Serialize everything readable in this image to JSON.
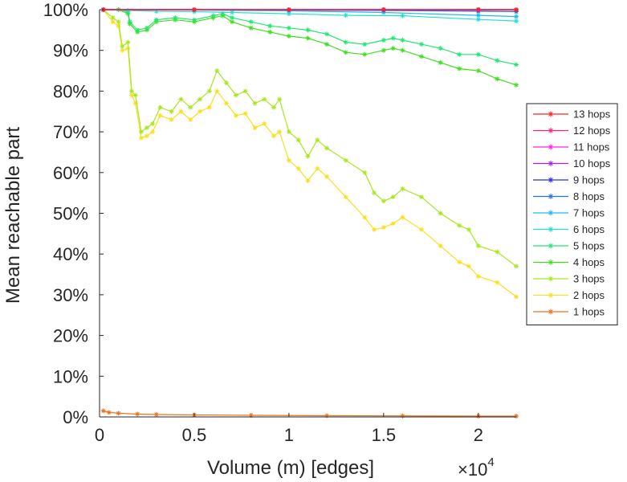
{
  "chart_data": {
    "type": "line",
    "xlabel": "Volume (m) [edges]",
    "ylabel": "Mean reachable part",
    "x_exponent_label": "×10",
    "x_exponent_power": "4",
    "xlim": [
      0,
      22000
    ],
    "ylim": [
      0,
      100
    ],
    "x_ticks": [
      {
        "value": 0,
        "label": "0"
      },
      {
        "value": 5000,
        "label": "0.5"
      },
      {
        "value": 10000,
        "label": "1"
      },
      {
        "value": 15000,
        "label": "1.5"
      },
      {
        "value": 20000,
        "label": "2"
      }
    ],
    "y_ticks": [
      {
        "value": 0,
        "label": "0%"
      },
      {
        "value": 10,
        "label": "10%"
      },
      {
        "value": 20,
        "label": "20%"
      },
      {
        "value": 30,
        "label": "30%"
      },
      {
        "value": 40,
        "label": "40%"
      },
      {
        "value": 50,
        "label": "50%"
      },
      {
        "value": 60,
        "label": "60%"
      },
      {
        "value": 70,
        "label": "70%"
      },
      {
        "value": 80,
        "label": "80%"
      },
      {
        "value": 90,
        "label": "90%"
      },
      {
        "value": 100,
        "label": "100%"
      }
    ],
    "grid": false,
    "legend_position": "right",
    "series": [
      {
        "name": "13 hops",
        "color": "#ff2020",
        "x": [
          200,
          5000,
          10000,
          15000,
          20000,
          22000
        ],
        "values": [
          100,
          100,
          100,
          100,
          100,
          100
        ]
      },
      {
        "name": "12 hops",
        "color": "#ff2080",
        "x": [
          200,
          5000,
          10000,
          15000,
          20000,
          22000
        ],
        "values": [
          100,
          100,
          100,
          100,
          100,
          100
        ]
      },
      {
        "name": "11 hops",
        "color": "#ff20e0",
        "x": [
          200,
          5000,
          10000,
          15000,
          20000,
          22000
        ],
        "values": [
          100,
          100,
          100,
          100,
          100,
          100
        ]
      },
      {
        "name": "10 hops",
        "color": "#a020ff",
        "x": [
          200,
          5000,
          10000,
          15000,
          20000,
          22000
        ],
        "values": [
          100,
          100,
          100,
          100,
          100,
          100
        ]
      },
      {
        "name": "9 hops",
        "color": "#2a2ad8",
        "x": [
          200,
          5000,
          10000,
          15000,
          20000,
          22000
        ],
        "values": [
          100,
          100,
          100,
          100,
          99.9,
          99.9
        ]
      },
      {
        "name": "8 hops",
        "color": "#2a6ee8",
        "x": [
          200,
          5000,
          10000,
          15000,
          20000,
          22000
        ],
        "values": [
          100,
          100,
          99.9,
          99.8,
          99.6,
          99.5
        ]
      },
      {
        "name": "7 hops",
        "color": "#20b8f0",
        "x": [
          200,
          5000,
          10000,
          15000,
          20000,
          22000
        ],
        "values": [
          100,
          99.9,
          99.7,
          99.3,
          98.6,
          98.3
        ]
      },
      {
        "name": "6 hops",
        "color": "#20e0d0",
        "x": [
          200,
          1500,
          3000,
          5000,
          7000,
          10000,
          13000,
          16000,
          20000,
          22000
        ],
        "values": [
          100,
          99.8,
          99.6,
          99.5,
          99.3,
          99.0,
          98.6,
          98.5,
          97.6,
          97.2
        ]
      },
      {
        "name": "5 hops",
        "color": "#20e870",
        "x": [
          200,
          1000,
          1500,
          1600,
          2000,
          2500,
          3000,
          4000,
          5000,
          6000,
          6500,
          7000,
          8000,
          9000,
          10000,
          11000,
          12000,
          13000,
          14000,
          15000,
          15500,
          16000,
          17000,
          18000,
          19000,
          20000,
          21000,
          22000
        ],
        "values": [
          100,
          100,
          99.5,
          97.0,
          95.0,
          95.5,
          97.5,
          98.0,
          97.5,
          98.5,
          99.0,
          98.0,
          97.0,
          96.0,
          95.5,
          95.0,
          94.0,
          92.0,
          91.5,
          92.5,
          93.0,
          92.5,
          91.5,
          90.5,
          89.0,
          89.0,
          87.5,
          86.5
        ]
      },
      {
        "name": "4 hops",
        "color": "#40e020",
        "x": [
          200,
          1000,
          1500,
          1600,
          2000,
          2500,
          3000,
          4000,
          5000,
          6000,
          6500,
          7000,
          8000,
          9000,
          10000,
          11000,
          12000,
          13000,
          14000,
          15000,
          15500,
          16000,
          17000,
          18000,
          19000,
          20000,
          21000,
          22000
        ],
        "values": [
          100,
          100,
          99.0,
          96.5,
          94.5,
          95.0,
          97.0,
          97.5,
          97.0,
          98.0,
          98.5,
          97.0,
          95.5,
          94.5,
          93.5,
          93.0,
          91.5,
          89.5,
          89.0,
          90.0,
          90.5,
          90.0,
          88.5,
          87.0,
          85.5,
          85.0,
          83.0,
          81.5
        ]
      },
      {
        "name": "3 hops",
        "color": "#a8e820",
        "x": [
          200,
          700,
          1000,
          1200,
          1500,
          1700,
          1900,
          2200,
          2500,
          2800,
          3200,
          3800,
          4300,
          4800,
          5300,
          5800,
          6200,
          6700,
          7200,
          7700,
          8200,
          8700,
          9200,
          9500,
          10000,
          10500,
          11000,
          11500,
          12000,
          13000,
          14000,
          14500,
          15000,
          15500,
          16000,
          17000,
          18000,
          19000,
          19500,
          20000,
          21000,
          22000
        ],
        "values": [
          100,
          98.0,
          97.0,
          91.0,
          92.0,
          80.0,
          79.0,
          70.0,
          71.0,
          72.0,
          76.0,
          75.0,
          78.0,
          76.0,
          78.0,
          80.0,
          85.0,
          82.0,
          79.0,
          80.0,
          77.0,
          78.0,
          76.0,
          78.0,
          70.0,
          68.0,
          64.0,
          68.0,
          66.0,
          63.0,
          60.0,
          55.0,
          53.0,
          54.0,
          56.0,
          54.0,
          50.0,
          47.0,
          46.0,
          42.0,
          40.5,
          37.0
        ]
      },
      {
        "name": "2 hops",
        "color": "#f8e020",
        "x": [
          200,
          700,
          1000,
          1200,
          1500,
          1700,
          1900,
          2200,
          2500,
          2800,
          3200,
          3800,
          4300,
          4800,
          5300,
          5800,
          6200,
          6700,
          7200,
          7700,
          8200,
          8700,
          9200,
          9500,
          10000,
          10500,
          11000,
          11500,
          12000,
          13000,
          14000,
          14500,
          15000,
          15500,
          16000,
          17000,
          18000,
          19000,
          19500,
          20000,
          21000,
          22000
        ],
        "values": [
          100,
          97.0,
          96.0,
          90.0,
          90.5,
          79.0,
          77.0,
          68.5,
          69.0,
          70.0,
          74.0,
          73.0,
          75.0,
          73.0,
          75.0,
          76.0,
          80.0,
          77.0,
          74.0,
          74.5,
          71.0,
          72.0,
          69.0,
          70.0,
          63.0,
          61.0,
          58.0,
          61.0,
          59.0,
          54.0,
          49.0,
          46.0,
          46.5,
          47.5,
          49.0,
          46.0,
          42.0,
          38.0,
          37.0,
          34.5,
          33.0,
          29.5
        ]
      },
      {
        "name": "1 hops",
        "color": "#f07020",
        "x": [
          200,
          500,
          1000,
          2000,
          3000,
          5000,
          8000,
          12000,
          16000,
          20000,
          22000
        ],
        "values": [
          1.5,
          1.1,
          0.9,
          0.7,
          0.6,
          0.5,
          0.4,
          0.3,
          0.25,
          0.2,
          0.2
        ]
      }
    ]
  }
}
